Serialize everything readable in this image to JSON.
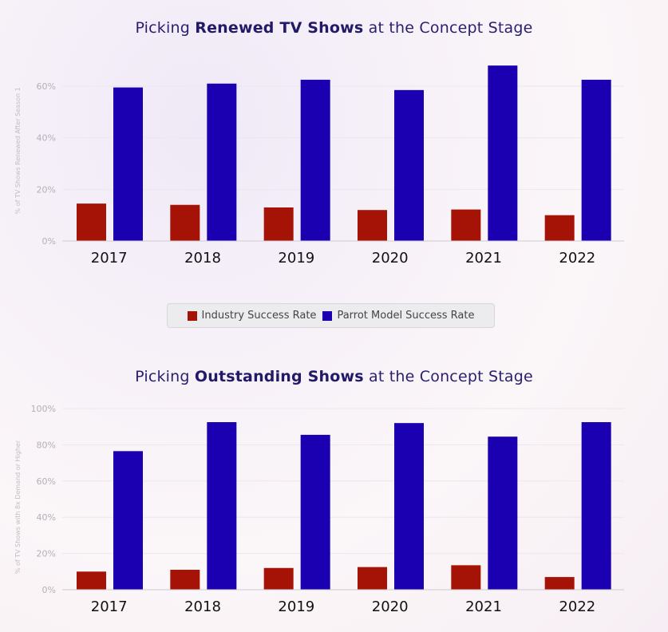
{
  "colors": {
    "industry": "#a51206",
    "parrot": "#1a00b0"
  },
  "legend": {
    "industry_label": "Industry Success Rate",
    "parrot_label": "Parrot Model Success Rate"
  },
  "chart_data": [
    {
      "type": "bar",
      "title_pre": "Picking ",
      "title_bold": "Renewed TV Shows",
      "title_post": " at the Concept Stage",
      "ylabel": "% of TV Shows Renewed After Season 1",
      "categories": [
        "2017",
        "2018",
        "2019",
        "2020",
        "2021",
        "2022"
      ],
      "yticks": [
        "0%",
        "20%",
        "40%",
        "60%"
      ],
      "ylim": [
        0,
        70
      ],
      "grid": true,
      "series": [
        {
          "name": "Industry Success Rate",
          "values": [
            14.5,
            14,
            13,
            12,
            12.2,
            10
          ]
        },
        {
          "name": "Parrot Model Success Rate",
          "values": [
            59.5,
            61,
            62.5,
            58.5,
            68,
            62.5
          ]
        }
      ]
    },
    {
      "type": "bar",
      "title_pre": "Picking ",
      "title_bold": "Outstanding Shows",
      "title_post": " at the Concept Stage",
      "ylabel": "% of TV Shows with 8x Demand or Higher",
      "categories": [
        "2017",
        "2018",
        "2019",
        "2020",
        "2021",
        "2022"
      ],
      "yticks": [
        "0%",
        "20%",
        "40%",
        "60%",
        "80%",
        "100%"
      ],
      "ylim": [
        0,
        100
      ],
      "grid": true,
      "series": [
        {
          "name": "Industry Success Rate",
          "values": [
            10,
            11,
            12,
            12.5,
            13.5,
            7
          ]
        },
        {
          "name": "Parrot Model Success Rate",
          "values": [
            76.5,
            92.5,
            85.5,
            92,
            84.5,
            92.5
          ]
        }
      ]
    }
  ]
}
